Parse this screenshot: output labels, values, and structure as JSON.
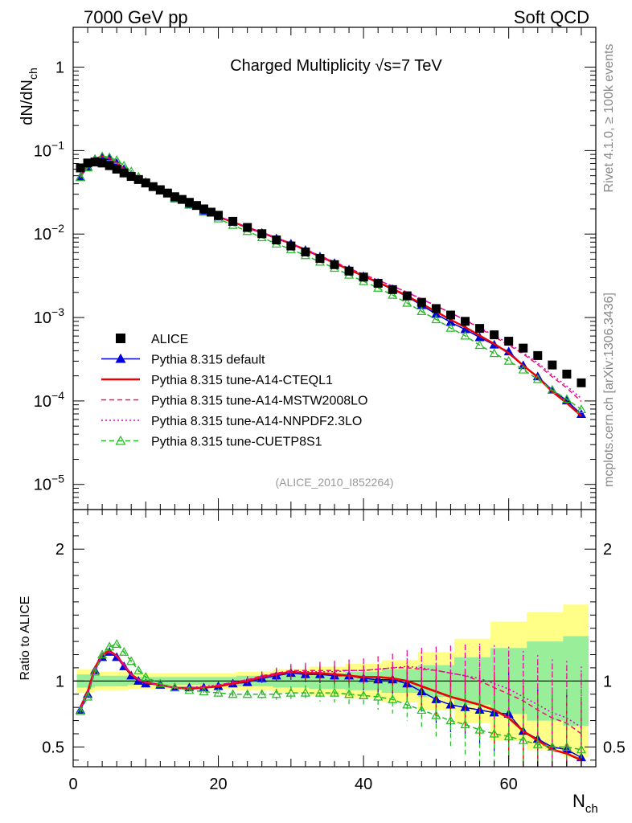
{
  "header": {
    "left": "7000 GeV pp",
    "right": "Soft QCD"
  },
  "side": {
    "rivet": "Rivet 4.1.0, ≥ 100k events",
    "mcplots": "mcplots.cern.ch [arXiv:1306.3436]"
  },
  "chart_data": {
    "type": "line",
    "title": "Charged Multiplicity √s=7 TeV",
    "analysis_tag": "(ALICE_2010_I852264)",
    "ylabel": "dN/dN",
    "ylabel_sub": "ch",
    "xlabel": "N",
    "xlabel_sub": "ch",
    "ratio_ylabel": "Ratio to ALICE",
    "xlim": [
      0,
      72
    ],
    "ylim_log": [
      5e-06,
      3
    ],
    "ratio_ylim": [
      0.35,
      2.3
    ],
    "x_ticks": [
      0,
      20,
      40,
      60
    ],
    "x_tick_labels": [
      "0",
      "20",
      "40",
      "60"
    ],
    "y_ticks": [
      1,
      0.1,
      0.01,
      0.001,
      0.0001,
      1e-05
    ],
    "y_tick_mant": [
      "1",
      "10",
      "10",
      "10",
      "10",
      "10"
    ],
    "y_tick_exp": [
      "",
      "−1",
      "−2",
      "−3",
      "−4",
      "−5"
    ],
    "ratio_ticks": [
      2,
      1,
      0.5
    ],
    "ratio_tick_labels": [
      "2",
      "1",
      "0.5"
    ],
    "ratio_band_x": [
      1,
      5,
      10,
      15,
      20,
      25,
      30,
      35,
      40,
      45,
      50,
      55,
      60,
      65,
      70
    ],
    "ratio_band_inner": [
      0.05,
      0.04,
      0.03,
      0.03,
      0.03,
      0.04,
      0.05,
      0.06,
      0.07,
      0.09,
      0.12,
      0.18,
      0.25,
      0.3,
      0.34
    ],
    "ratio_band_outer": [
      0.09,
      0.07,
      0.06,
      0.06,
      0.06,
      0.07,
      0.09,
      0.11,
      0.13,
      0.16,
      0.22,
      0.32,
      0.45,
      0.52,
      0.58
    ],
    "legend_position": "bottom-left",
    "data": {
      "name": "ALICE",
      "x": [
        1,
        2,
        3,
        4,
        5,
        6,
        7,
        8,
        9,
        10,
        11,
        12,
        13,
        14,
        15,
        16,
        17,
        18,
        19,
        20,
        22,
        24,
        26,
        28,
        30,
        32,
        34,
        36,
        38,
        40,
        42,
        44,
        46,
        48,
        50,
        52,
        54,
        56,
        58,
        60,
        62,
        64,
        66,
        68,
        70
      ],
      "y": [
        0.062,
        0.071,
        0.073,
        0.071,
        0.066,
        0.06,
        0.054,
        0.049,
        0.045,
        0.041,
        0.037,
        0.034,
        0.031,
        0.028,
        0.026,
        0.024,
        0.022,
        0.02,
        0.0183,
        0.0168,
        0.0142,
        0.012,
        0.0101,
        0.0085,
        0.0072,
        0.0061,
        0.0051,
        0.0043,
        0.0036,
        0.00305,
        0.00257,
        0.00216,
        0.00182,
        0.00152,
        0.00128,
        0.00107,
        0.0009,
        0.00074,
        0.00062,
        0.00052,
        0.00043,
        0.00035,
        0.00027,
        0.00021,
        0.000165
      ]
    },
    "series": [
      {
        "name": "Pythia 8.315 default",
        "color": "#0000dd",
        "style": "solid",
        "marker": "triangle-filled",
        "x": [
          1,
          2,
          3,
          4,
          5,
          6,
          7,
          8,
          9,
          10,
          12,
          14,
          16,
          18,
          20,
          22,
          24,
          26,
          28,
          30,
          32,
          34,
          36,
          38,
          40,
          42,
          44,
          46,
          48,
          50,
          52,
          54,
          56,
          58,
          60,
          62,
          64,
          66,
          68,
          70
        ],
        "ratio": [
          0.78,
          0.9,
          1.08,
          1.18,
          1.22,
          1.18,
          1.11,
          1.04,
          1.0,
          0.98,
          0.97,
          0.95,
          0.95,
          0.95,
          0.96,
          0.98,
          0.99,
          1.02,
          1.04,
          1.06,
          1.05,
          1.05,
          1.04,
          1.04,
          1.02,
          1.01,
          1.01,
          0.98,
          0.92,
          0.86,
          0.82,
          0.8,
          0.78,
          0.76,
          0.75,
          0.62,
          0.56,
          0.5,
          0.48,
          0.42
        ]
      },
      {
        "name": "Pythia 8.315 tune-A14-CTEQL1",
        "color": "#ee0000",
        "style": "solid",
        "marker": "none",
        "x": [
          1,
          2,
          3,
          4,
          5,
          6,
          7,
          8,
          9,
          10,
          12,
          14,
          16,
          18,
          20,
          22,
          24,
          26,
          28,
          30,
          32,
          34,
          36,
          38,
          40,
          42,
          44,
          46,
          48,
          50,
          52,
          54,
          56,
          58,
          60,
          62,
          64,
          66,
          68,
          70
        ],
        "ratio": [
          0.8,
          0.92,
          1.1,
          1.2,
          1.23,
          1.19,
          1.12,
          1.05,
          1.01,
          0.99,
          0.97,
          0.95,
          0.94,
          0.95,
          0.96,
          0.98,
          1.0,
          1.03,
          1.05,
          1.07,
          1.06,
          1.06,
          1.05,
          1.04,
          1.03,
          1.03,
          1.02,
          1.0,
          0.96,
          0.92,
          0.88,
          0.85,
          0.82,
          0.78,
          0.72,
          0.62,
          0.55,
          0.48,
          0.45,
          0.4
        ]
      },
      {
        "name": "Pythia 8.315 tune-A14-MSTW2008LO",
        "color": "#ee1166",
        "style": "dashed",
        "marker": "none",
        "x": [
          1,
          2,
          3,
          4,
          5,
          6,
          7,
          8,
          9,
          10,
          12,
          14,
          16,
          18,
          20,
          22,
          24,
          26,
          28,
          30,
          32,
          34,
          36,
          38,
          40,
          42,
          44,
          46,
          48,
          50,
          52,
          54,
          56,
          58,
          60,
          62,
          64,
          66,
          68,
          70
        ],
        "ratio": [
          0.79,
          0.91,
          1.09,
          1.2,
          1.22,
          1.19,
          1.12,
          1.05,
          1.01,
          0.99,
          0.97,
          0.95,
          0.95,
          0.95,
          0.97,
          0.99,
          1.01,
          1.04,
          1.06,
          1.08,
          1.08,
          1.08,
          1.08,
          1.08,
          1.08,
          1.09,
          1.1,
          1.1,
          1.09,
          1.08,
          1.06,
          1.04,
          1.0,
          0.95,
          0.9,
          0.85,
          0.78,
          0.72,
          0.68,
          0.6
        ]
      },
      {
        "name": "Pythia 8.315 tune-A14-NNPDF2.3LO",
        "color": "#dd00cc",
        "style": "dotted",
        "marker": "none",
        "x": [
          1,
          2,
          3,
          4,
          5,
          6,
          7,
          8,
          9,
          10,
          12,
          14,
          16,
          18,
          20,
          22,
          24,
          26,
          28,
          30,
          32,
          34,
          36,
          38,
          40,
          42,
          44,
          46,
          48,
          50,
          52,
          54,
          56,
          58,
          60,
          62,
          64,
          66,
          68,
          70
        ],
        "ratio": [
          0.79,
          0.9,
          1.08,
          1.19,
          1.22,
          1.19,
          1.12,
          1.05,
          1.01,
          0.99,
          0.97,
          0.95,
          0.95,
          0.96,
          0.97,
          0.99,
          1.01,
          1.03,
          1.05,
          1.07,
          1.07,
          1.07,
          1.07,
          1.08,
          1.08,
          1.09,
          1.1,
          1.11,
          1.1,
          1.08,
          1.06,
          1.04,
          1.02,
          0.98,
          0.94,
          0.88,
          0.82,
          0.76,
          0.72,
          0.65
        ]
      },
      {
        "name": "Pythia 8.315 tune-CUETP8S1",
        "color": "#22bb22",
        "style": "dashed",
        "marker": "triangle-open",
        "x": [
          1,
          2,
          3,
          4,
          5,
          6,
          7,
          8,
          9,
          10,
          12,
          14,
          16,
          18,
          20,
          22,
          24,
          26,
          28,
          30,
          32,
          34,
          36,
          38,
          40,
          42,
          44,
          46,
          48,
          50,
          52,
          54,
          56,
          58,
          60,
          62,
          64,
          66,
          68,
          70
        ],
        "ratio": [
          0.77,
          0.88,
          1.07,
          1.2,
          1.26,
          1.28,
          1.22,
          1.15,
          1.08,
          1.03,
          0.98,
          0.95,
          0.93,
          0.92,
          0.91,
          0.9,
          0.9,
          0.9,
          0.9,
          0.91,
          0.91,
          0.91,
          0.91,
          0.9,
          0.89,
          0.88,
          0.86,
          0.82,
          0.78,
          0.74,
          0.7,
          0.67,
          0.63,
          0.6,
          0.58,
          0.55,
          0.52,
          0.5,
          0.5,
          0.48
        ]
      }
    ]
  }
}
